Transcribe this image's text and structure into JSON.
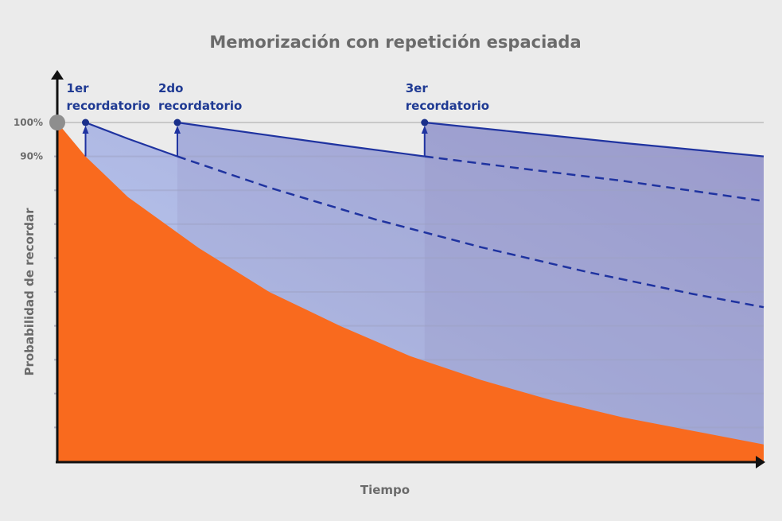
{
  "chart_data": {
    "type": "line",
    "title": "Memorización con repetición espaciada",
    "xlabel": "Tiempo",
    "ylabel": "Probabilidad de recordar",
    "ylim": [
      0,
      100
    ],
    "xlim": [
      0,
      100
    ],
    "y_tick_labels": [
      {
        "value": 100,
        "label": "100%"
      },
      {
        "value": 90,
        "label": "90%"
      }
    ],
    "grid": true,
    "grid_step": 10,
    "colors": {
      "forgetting": "#f96a1e",
      "review_line": "#1f33a0",
      "annotation": "#1f3a93",
      "start_dot": "#8e8e8e",
      "background": "#ebebeb"
    },
    "forgetting_curve": [
      [
        0,
        100
      ],
      [
        4,
        90
      ],
      [
        10,
        78
      ],
      [
        20,
        63
      ],
      [
        30,
        50
      ],
      [
        40,
        40
      ],
      [
        50,
        31
      ],
      [
        60,
        24
      ],
      [
        70,
        18
      ],
      [
        80,
        13
      ],
      [
        90,
        9
      ],
      [
        100,
        5
      ]
    ],
    "reminders": [
      {
        "label_line1": "1er",
        "label_line2": "recordatorio",
        "x": 4,
        "solid": [
          [
            4,
            100
          ],
          [
            10,
            95.2
          ],
          [
            17,
            90
          ]
        ],
        "dashed": [
          [
            17,
            90
          ],
          [
            30,
            80.8
          ],
          [
            45,
            71.4
          ],
          [
            60,
            63.2
          ],
          [
            75,
            55.9
          ],
          [
            90,
            49.4
          ],
          [
            100,
            45.5
          ]
        ]
      },
      {
        "label_line1": "2do",
        "label_line2": "recordatorio",
        "x": 17,
        "solid": [
          [
            17,
            100
          ],
          [
            30,
            96.2
          ],
          [
            40,
            93.3
          ],
          [
            52,
            90
          ]
        ],
        "dashed": [
          [
            52,
            90
          ],
          [
            65,
            86.6
          ],
          [
            80,
            82.8
          ],
          [
            99.4,
            77
          ]
        ]
      },
      {
        "label_line1": "3er",
        "label_line2": "recordatorio",
        "x": 52,
        "solid": [
          [
            52,
            100
          ],
          [
            65,
            97.2
          ],
          [
            80,
            94
          ],
          [
            100,
            90
          ]
        ],
        "dashed": []
      }
    ]
  }
}
